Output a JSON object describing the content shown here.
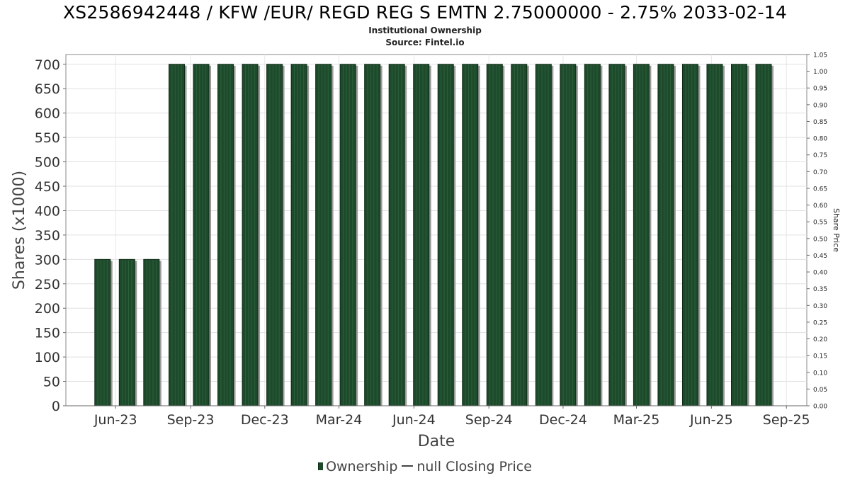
{
  "chart_data": {
    "type": "bar",
    "title": "XS2586942448 / KFW /EUR/ REGD REG S EMTN 2.75000000 - 2.75% 2033-02-14",
    "subtitle": "Institutional Ownership",
    "source": "Source: Fintel.io",
    "xlabel": "Date",
    "ylabel": "Shares (x1000)",
    "y2label": "Share Price",
    "ylim": [
      0,
      720
    ],
    "y2lim": [
      0,
      1.05
    ],
    "yticks": [
      "0",
      "50",
      "100",
      "150",
      "200",
      "250",
      "300",
      "350",
      "400",
      "450",
      "500",
      "550",
      "600",
      "650",
      "700"
    ],
    "y2ticks": [
      "0.00",
      "0.05",
      "0.10",
      "0.15",
      "0.20",
      "0.25",
      "0.30",
      "0.35",
      "0.40",
      "0.45",
      "0.50",
      "0.55",
      "0.60",
      "0.65",
      "0.70",
      "0.75",
      "0.80",
      "0.85",
      "0.90",
      "0.95",
      "1.00",
      "1.05"
    ],
    "xticks": [
      "Jun-23",
      "Sep-23",
      "Dec-23",
      "Mar-24",
      "Jun-24",
      "Sep-24",
      "Dec-24",
      "Mar-25",
      "Jun-25",
      "Sep-25"
    ],
    "x_start": "2023-04-15",
    "x_end": "2025-10-10",
    "series": [
      {
        "name": "Ownership",
        "color": "#1e4a2c",
        "dates": [
          "2023-05-30",
          "2023-06-29",
          "2023-07-29",
          "2023-08-29",
          "2023-09-28",
          "2023-10-28",
          "2023-11-27",
          "2023-12-27",
          "2024-01-26",
          "2024-02-25",
          "2024-03-26",
          "2024-04-25",
          "2024-05-25",
          "2024-06-24",
          "2024-07-24",
          "2024-08-23",
          "2024-09-22",
          "2024-10-22",
          "2024-11-21",
          "2024-12-21",
          "2025-01-20",
          "2025-02-19",
          "2025-03-21",
          "2025-04-20",
          "2025-05-20",
          "2025-06-19",
          "2025-07-19",
          "2025-08-18"
        ],
        "values": [
          300,
          300,
          300,
          700,
          700,
          700,
          700,
          700,
          700,
          700,
          700,
          700,
          700,
          700,
          700,
          700,
          700,
          700,
          700,
          700,
          700,
          700,
          700,
          700,
          700,
          700,
          700,
          700
        ]
      },
      {
        "name": "null Closing Price",
        "color": "#444444",
        "values": []
      }
    ],
    "grid": true,
    "legend": "bottom"
  }
}
